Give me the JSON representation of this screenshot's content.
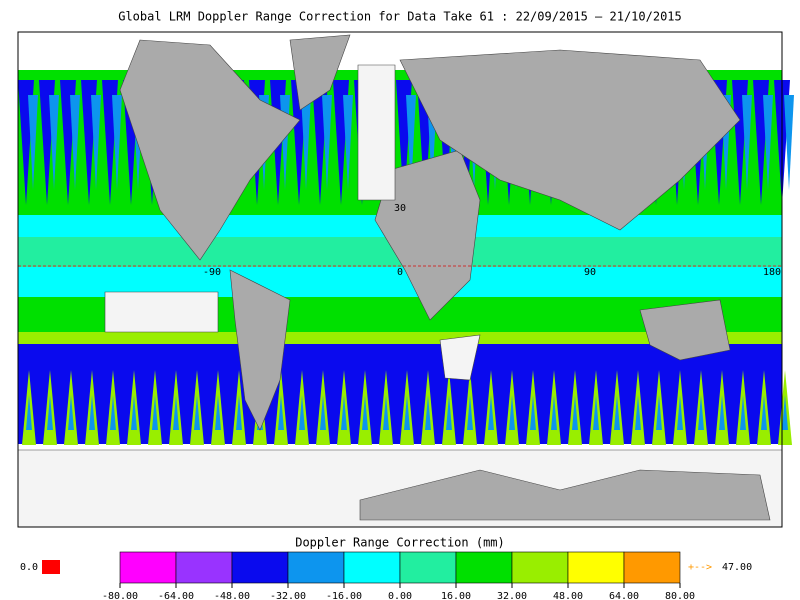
{
  "title": "Global LRM Doppler Range Correction for Data Take 61 : 22/09/2015 – 21/10/2015",
  "map": {
    "latitude_labels": [
      "30"
    ],
    "longitude_labels": [
      "-90",
      "0",
      "90",
      "180"
    ]
  },
  "colorbar": {
    "title": "Doppler Range Correction (mm)",
    "ticks": [
      {
        "value": -80,
        "label": "-80.00"
      },
      {
        "value": -64,
        "label": "-64.00"
      },
      {
        "value": -48,
        "label": "-48.00"
      },
      {
        "value": -32,
        "label": "-32.00"
      },
      {
        "value": -16,
        "label": "-16.00"
      },
      {
        "value": 0,
        "label": "0.00"
      },
      {
        "value": 16,
        "label": "16.00"
      },
      {
        "value": 32,
        "label": "32.00"
      },
      {
        "value": 48,
        "label": "48.00"
      },
      {
        "value": 64,
        "label": "64.00"
      },
      {
        "value": 80,
        "label": "80.00"
      }
    ],
    "colors": [
      "#ff00ff",
      "#9933ff",
      "#0a0aee",
      "#0d95ee",
      "#00ffff",
      "#22eea0",
      "#00e000",
      "#99ee00",
      "#ffff00",
      "#ff9900"
    ],
    "missing_label": "0.0",
    "missing_color": "#ff0000",
    "overflow_arrow": "+-->",
    "overflow_value": "47.00"
  }
}
